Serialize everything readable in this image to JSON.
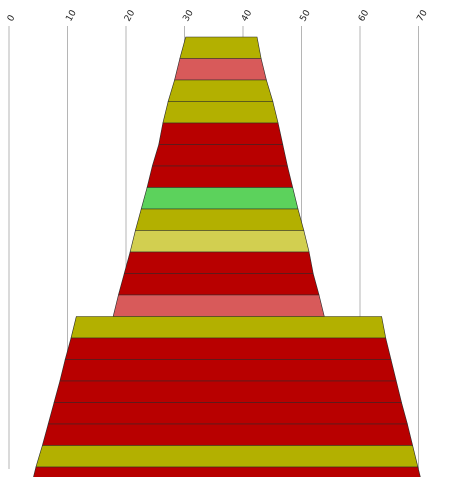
{
  "chart_data": {
    "type": "bar",
    "subtype": "stacked-trapezoid-funnel",
    "title": "",
    "xlabel": "",
    "ylabel": "",
    "x_ticks": [
      "0",
      "10",
      "20",
      "30",
      "40",
      "50",
      "60",
      "70"
    ],
    "xlim": [
      0,
      75
    ],
    "grid": "vertical gridlines on",
    "legend": "none",
    "colors": {
      "olive": "#b3b000",
      "red": "#b80000",
      "salmon": "#d85a5a",
      "green": "#5cd25c",
      "khaki": "#d2cf50",
      "gridline": "#b5b5b5"
    },
    "bands": [
      {
        "color": "olive",
        "left": 30.2,
        "right": 42.4
      },
      {
        "color": "salmon",
        "left": 29.2,
        "right": 43.1
      },
      {
        "color": "olive",
        "left": 28.3,
        "right": 44.0
      },
      {
        "color": "olive",
        "left": 27.2,
        "right": 45.1
      },
      {
        "color": "red",
        "left": 26.3,
        "right": 46.0
      },
      {
        "color": "red",
        "left": 25.6,
        "right": 46.8
      },
      {
        "color": "red",
        "left": 24.5,
        "right": 47.6
      },
      {
        "color": "green",
        "left": 23.6,
        "right": 48.5
      },
      {
        "color": "olive",
        "left": 22.6,
        "right": 49.4
      },
      {
        "color": "khaki",
        "left": 21.6,
        "right": 50.4
      },
      {
        "color": "red",
        "left": 20.7,
        "right": 51.3
      },
      {
        "color": "red",
        "left": 19.7,
        "right": 52.0
      },
      {
        "color": "salmon",
        "left": 18.7,
        "right": 53.0
      },
      {
        "color": "olive",
        "left": 11.5,
        "right": 63.7
      },
      {
        "color": "red",
        "left": 10.6,
        "right": 64.4
      },
      {
        "color": "red",
        "left": 9.6,
        "right": 65.3
      },
      {
        "color": "red",
        "left": 8.7,
        "right": 66.2
      },
      {
        "color": "red",
        "left": 7.7,
        "right": 67.1
      },
      {
        "color": "red",
        "left": 6.7,
        "right": 68.1
      },
      {
        "color": "olive",
        "left": 5.7,
        "right": 69.0
      },
      {
        "color": "red",
        "left": 4.6,
        "right": 69.9
      }
    ]
  }
}
